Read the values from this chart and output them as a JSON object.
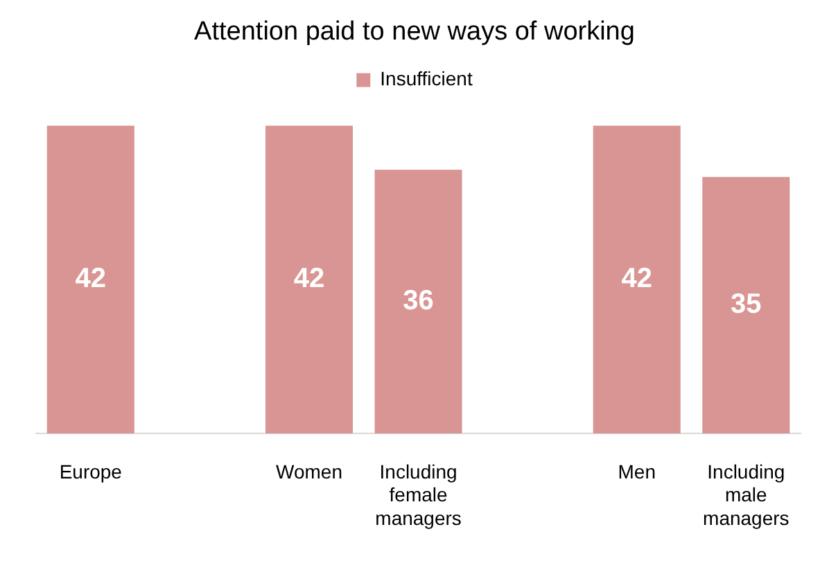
{
  "chart_data": {
    "type": "bar",
    "title": "Attention paid to new ways of working",
    "categories": [
      "Europe",
      null,
      "Women",
      "Including female managers",
      null,
      "Men",
      "Including male managers"
    ],
    "series": [
      {
        "name": "Insufficient",
        "color": "#d99594",
        "values": [
          42,
          null,
          42,
          36,
          null,
          42,
          35
        ]
      }
    ],
    "data_labels": true,
    "legend": "top",
    "grid": false
  }
}
